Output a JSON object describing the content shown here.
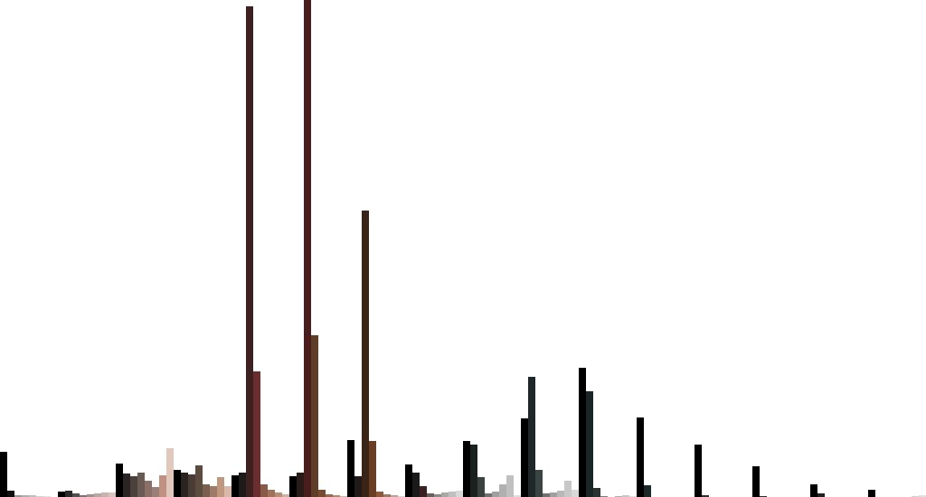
{
  "chart_data": {
    "type": "bar",
    "title": "",
    "xlabel": "",
    "ylabel": "",
    "ylim": [
      0,
      550
    ],
    "grid": false,
    "legend": "none",
    "category_count": 16,
    "slots_per_category": 8,
    "colors": {
      "background": "#ffffff",
      "series": [
        "#000000",
        "#1c1c1c",
        "#3d3030",
        "#5a4a44",
        "#7a6258",
        "#a08070",
        "#c8a898",
        "#b8b8b8",
        "#3a1f1f",
        "#4a1e1e",
        "#6b2a2a",
        "#5a3a20",
        "#3a2418",
        "#6a3e22",
        "#1f2a28",
        "#2a3331"
      ]
    },
    "groups": [
      {
        "bars": [
          {
            "v": 50,
            "c": "#000000"
          },
          {
            "v": 7,
            "c": "#101010"
          },
          {
            "v": 2,
            "c": "#9a9a9a"
          },
          {
            "v": 2,
            "c": "#b0b0b0"
          },
          {
            "v": 2,
            "c": "#c0c0c0"
          },
          {
            "v": 1,
            "c": "#d0d0d0"
          },
          {
            "v": 1,
            "c": "#e0e0e0"
          },
          {
            "v": 0,
            "c": "#ffffff"
          }
        ]
      },
      {
        "bars": [
          {
            "v": 6,
            "c": "#000000"
          },
          {
            "v": 7,
            "c": "#2a2a2a"
          },
          {
            "v": 4,
            "c": "#505050"
          },
          {
            "v": 2,
            "c": "#807070"
          },
          {
            "v": 3,
            "c": "#a09090"
          },
          {
            "v": 4,
            "c": "#b8a8a0"
          },
          {
            "v": 5,
            "c": "#c8b4ac"
          },
          {
            "v": 5,
            "c": "#d8c4bc"
          }
        ]
      },
      {
        "bars": [
          {
            "v": 37,
            "c": "#000000"
          },
          {
            "v": 26,
            "c": "#2a2522"
          },
          {
            "v": 23,
            "c": "#4a403c"
          },
          {
            "v": 27,
            "c": "#6a5a54"
          },
          {
            "v": 18,
            "c": "#8a7066"
          },
          {
            "v": 11,
            "c": "#9a8078"
          },
          {
            "v": 24,
            "c": "#c09080"
          },
          {
            "v": 54,
            "c": "#e2c8bc"
          }
        ]
      },
      {
        "bars": [
          {
            "v": 30,
            "c": "#000000"
          },
          {
            "v": 27,
            "c": "#2a2420"
          },
          {
            "v": 25,
            "c": "#4a3c34"
          },
          {
            "v": 35,
            "c": "#5c4c40"
          },
          {
            "v": 14,
            "c": "#7a5e50"
          },
          {
            "v": 12,
            "c": "#a07a68"
          },
          {
            "v": 22,
            "c": "#c09880"
          },
          {
            "v": 12,
            "c": "#d8b8a8"
          }
        ]
      },
      {
        "bars": [
          {
            "v": 24,
            "c": "#000000"
          },
          {
            "v": 27,
            "c": "#1e1a1a"
          },
          {
            "v": 543,
            "c": "#3e2020"
          },
          {
            "v": 139,
            "c": "#6a2e2e"
          },
          {
            "v": 14,
            "c": "#8a5a48"
          },
          {
            "v": 8,
            "c": "#a07258"
          },
          {
            "v": 5,
            "c": "#b89078"
          },
          {
            "v": 3,
            "c": "#d0b0a0"
          }
        ]
      },
      {
        "bars": [
          {
            "v": 23,
            "c": "#000000"
          },
          {
            "v": 27,
            "c": "#281c1a"
          },
          {
            "v": 550,
            "c": "#4a1c1c"
          },
          {
            "v": 179,
            "c": "#5e3e26"
          },
          {
            "v": 8,
            "c": "#7a4a30"
          },
          {
            "v": 3,
            "c": "#9a6a50"
          },
          {
            "v": 2,
            "c": "#b08a70"
          },
          {
            "v": 1,
            "c": "#d0b8a8"
          }
        ]
      },
      {
        "bars": [
          {
            "v": 63,
            "c": "#000000"
          },
          {
            "v": 23,
            "c": "#201a18"
          },
          {
            "v": 317,
            "c": "#3a2418"
          },
          {
            "v": 62,
            "c": "#6a3e22"
          },
          {
            "v": 6,
            "c": "#8a5a3a"
          },
          {
            "v": 3,
            "c": "#a07a60"
          },
          {
            "v": 2,
            "c": "#c0a090"
          },
          {
            "v": 1,
            "c": "#e0d0c8"
          }
        ]
      },
      {
        "bars": [
          {
            "v": 36,
            "c": "#000000"
          },
          {
            "v": 27,
            "c": "#1a1a1a"
          },
          {
            "v": 12,
            "c": "#3a2020"
          },
          {
            "v": 4,
            "c": "#6a6060"
          },
          {
            "v": 3,
            "c": "#908888"
          },
          {
            "v": 5,
            "c": "#a8a8a8"
          },
          {
            "v": 6,
            "c": "#c0c0c0"
          },
          {
            "v": 7,
            "c": "#d8d8d8"
          }
        ]
      },
      {
        "bars": [
          {
            "v": 62,
            "c": "#000000"
          },
          {
            "v": 58,
            "c": "#1a2220"
          },
          {
            "v": 22,
            "c": "#3a4240"
          },
          {
            "v": 4,
            "c": "#707070"
          },
          {
            "v": 6,
            "c": "#a0a0a0"
          },
          {
            "v": 14,
            "c": "#b0b0b0"
          },
          {
            "v": 24,
            "c": "#c0c0c0"
          },
          {
            "v": 2,
            "c": "#e0e0e0"
          }
        ]
      },
      {
        "bars": [
          {
            "v": 87,
            "c": "#000000"
          },
          {
            "v": 133,
            "c": "#1e2826"
          },
          {
            "v": 30,
            "c": "#3a4442"
          },
          {
            "v": 4,
            "c": "#707070"
          },
          {
            "v": 5,
            "c": "#a0a0a0"
          },
          {
            "v": 7,
            "c": "#b8b8b8"
          },
          {
            "v": 18,
            "c": "#c8c8c8"
          },
          {
            "v": 8,
            "c": "#d8d8d8"
          }
        ]
      },
      {
        "bars": [
          {
            "v": 143,
            "c": "#000000"
          },
          {
            "v": 117,
            "c": "#1a2624"
          },
          {
            "v": 10,
            "c": "#2a3331"
          },
          {
            "v": 1,
            "c": "#808080"
          },
          {
            "v": 0,
            "c": "#ffffff"
          },
          {
            "v": 1,
            "c": "#b0b0b0"
          },
          {
            "v": 2,
            "c": "#c8c8c8"
          },
          {
            "v": 1,
            "c": "#e0e0e0"
          }
        ]
      },
      {
        "bars": [
          {
            "v": 88,
            "c": "#000000"
          },
          {
            "v": 13,
            "c": "#1a2a28"
          },
          {
            "v": 0,
            "c": "#ffffff"
          },
          {
            "v": 0,
            "c": "#ffffff"
          },
          {
            "v": 0,
            "c": "#ffffff"
          },
          {
            "v": 0,
            "c": "#ffffff"
          },
          {
            "v": 0,
            "c": "#ffffff"
          },
          {
            "v": 0,
            "c": "#ffffff"
          }
        ]
      },
      {
        "bars": [
          {
            "v": 58,
            "c": "#000000"
          },
          {
            "v": 2,
            "c": "#303030"
          },
          {
            "v": 0,
            "c": "#ffffff"
          },
          {
            "v": 0,
            "c": "#ffffff"
          },
          {
            "v": 0,
            "c": "#ffffff"
          },
          {
            "v": 0,
            "c": "#ffffff"
          },
          {
            "v": 0,
            "c": "#ffffff"
          },
          {
            "v": 0,
            "c": "#ffffff"
          }
        ]
      },
      {
        "bars": [
          {
            "v": 34,
            "c": "#000000"
          },
          {
            "v": 1,
            "c": "#303030"
          },
          {
            "v": 0,
            "c": "#ffffff"
          },
          {
            "v": 0,
            "c": "#ffffff"
          },
          {
            "v": 0,
            "c": "#ffffff"
          },
          {
            "v": 0,
            "c": "#ffffff"
          },
          {
            "v": 0,
            "c": "#ffffff"
          },
          {
            "v": 0,
            "c": "#ffffff"
          }
        ]
      },
      {
        "bars": [
          {
            "v": 14,
            "c": "#000000"
          },
          {
            "v": 4,
            "c": "#202020"
          },
          {
            "v": 0,
            "c": "#ffffff"
          },
          {
            "v": 0,
            "c": "#ffffff"
          },
          {
            "v": 0,
            "c": "#ffffff"
          },
          {
            "v": 0,
            "c": "#ffffff"
          },
          {
            "v": 0,
            "c": "#ffffff"
          },
          {
            "v": 0,
            "c": "#ffffff"
          }
        ]
      },
      {
        "bars": [
          {
            "v": 8,
            "c": "#000000"
          },
          {
            "v": 0,
            "c": "#ffffff"
          },
          {
            "v": 0,
            "c": "#ffffff"
          },
          {
            "v": 0,
            "c": "#ffffff"
          },
          {
            "v": 0,
            "c": "#ffffff"
          },
          {
            "v": 0,
            "c": "#ffffff"
          },
          {
            "v": 1,
            "c": "#d0d0d0"
          },
          {
            "v": 2,
            "c": "#e0e0e0"
          }
        ]
      }
    ]
  }
}
